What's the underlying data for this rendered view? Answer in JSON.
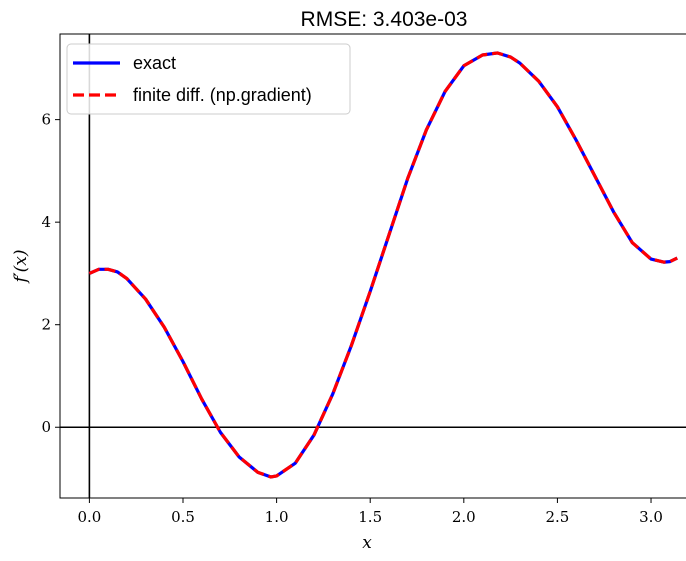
{
  "chart_data": {
    "type": "line",
    "title": "RMSE: 3.403e-03",
    "xlabel": "x",
    "ylabel": "f′(x)",
    "xlim": [
      -0.157,
      3.299
    ],
    "ylim": [
      -1.38,
      7.67
    ],
    "xticks": [
      0.0,
      0.5,
      1.0,
      1.5,
      2.0,
      2.5,
      3.0
    ],
    "xtick_labels": [
      "0.0",
      "0.5",
      "1.0",
      "1.5",
      "2.0",
      "2.5",
      "3.0"
    ],
    "yticks": [
      0,
      2,
      4,
      6
    ],
    "ytick_labels": [
      "0",
      "2",
      "4",
      "6"
    ],
    "legend_position": "top-left",
    "reference_lines": [
      {
        "orientation": "horizontal",
        "value": 0,
        "color": "#000000"
      },
      {
        "orientation": "vertical",
        "value": 0,
        "color": "#000000"
      }
    ],
    "x": [
      0.0,
      0.05,
      0.1,
      0.15,
      0.2,
      0.3,
      0.4,
      0.5,
      0.6,
      0.7,
      0.8,
      0.9,
      0.97,
      1.0,
      1.1,
      1.2,
      1.3,
      1.4,
      1.5,
      1.6,
      1.7,
      1.8,
      1.9,
      2.0,
      2.1,
      2.18,
      2.25,
      2.3,
      2.4,
      2.5,
      2.6,
      2.7,
      2.8,
      2.9,
      3.0,
      3.07,
      3.1,
      3.14
    ],
    "series": [
      {
        "name": "exact",
        "color": "#0000ff",
        "style": "solid",
        "values": [
          3.0,
          3.08,
          3.08,
          3.03,
          2.9,
          2.5,
          1.95,
          1.28,
          0.55,
          -0.1,
          -0.58,
          -0.88,
          -0.97,
          -0.95,
          -0.7,
          -0.15,
          0.65,
          1.6,
          2.65,
          3.75,
          4.85,
          5.8,
          6.55,
          7.05,
          7.26,
          7.3,
          7.22,
          7.1,
          6.75,
          6.25,
          5.6,
          4.9,
          4.2,
          3.6,
          3.28,
          3.22,
          3.23,
          3.3
        ]
      },
      {
        "name": "finite diff. (np.gradient)",
        "color": "#ff0000",
        "style": "dashed",
        "values": [
          3.0,
          3.08,
          3.08,
          3.03,
          2.9,
          2.5,
          1.95,
          1.28,
          0.55,
          -0.1,
          -0.58,
          -0.88,
          -0.97,
          -0.95,
          -0.7,
          -0.15,
          0.65,
          1.6,
          2.65,
          3.75,
          4.85,
          5.8,
          6.55,
          7.05,
          7.26,
          7.3,
          7.22,
          7.1,
          6.75,
          6.25,
          5.6,
          4.9,
          4.2,
          3.6,
          3.28,
          3.22,
          3.23,
          3.3
        ]
      }
    ]
  }
}
